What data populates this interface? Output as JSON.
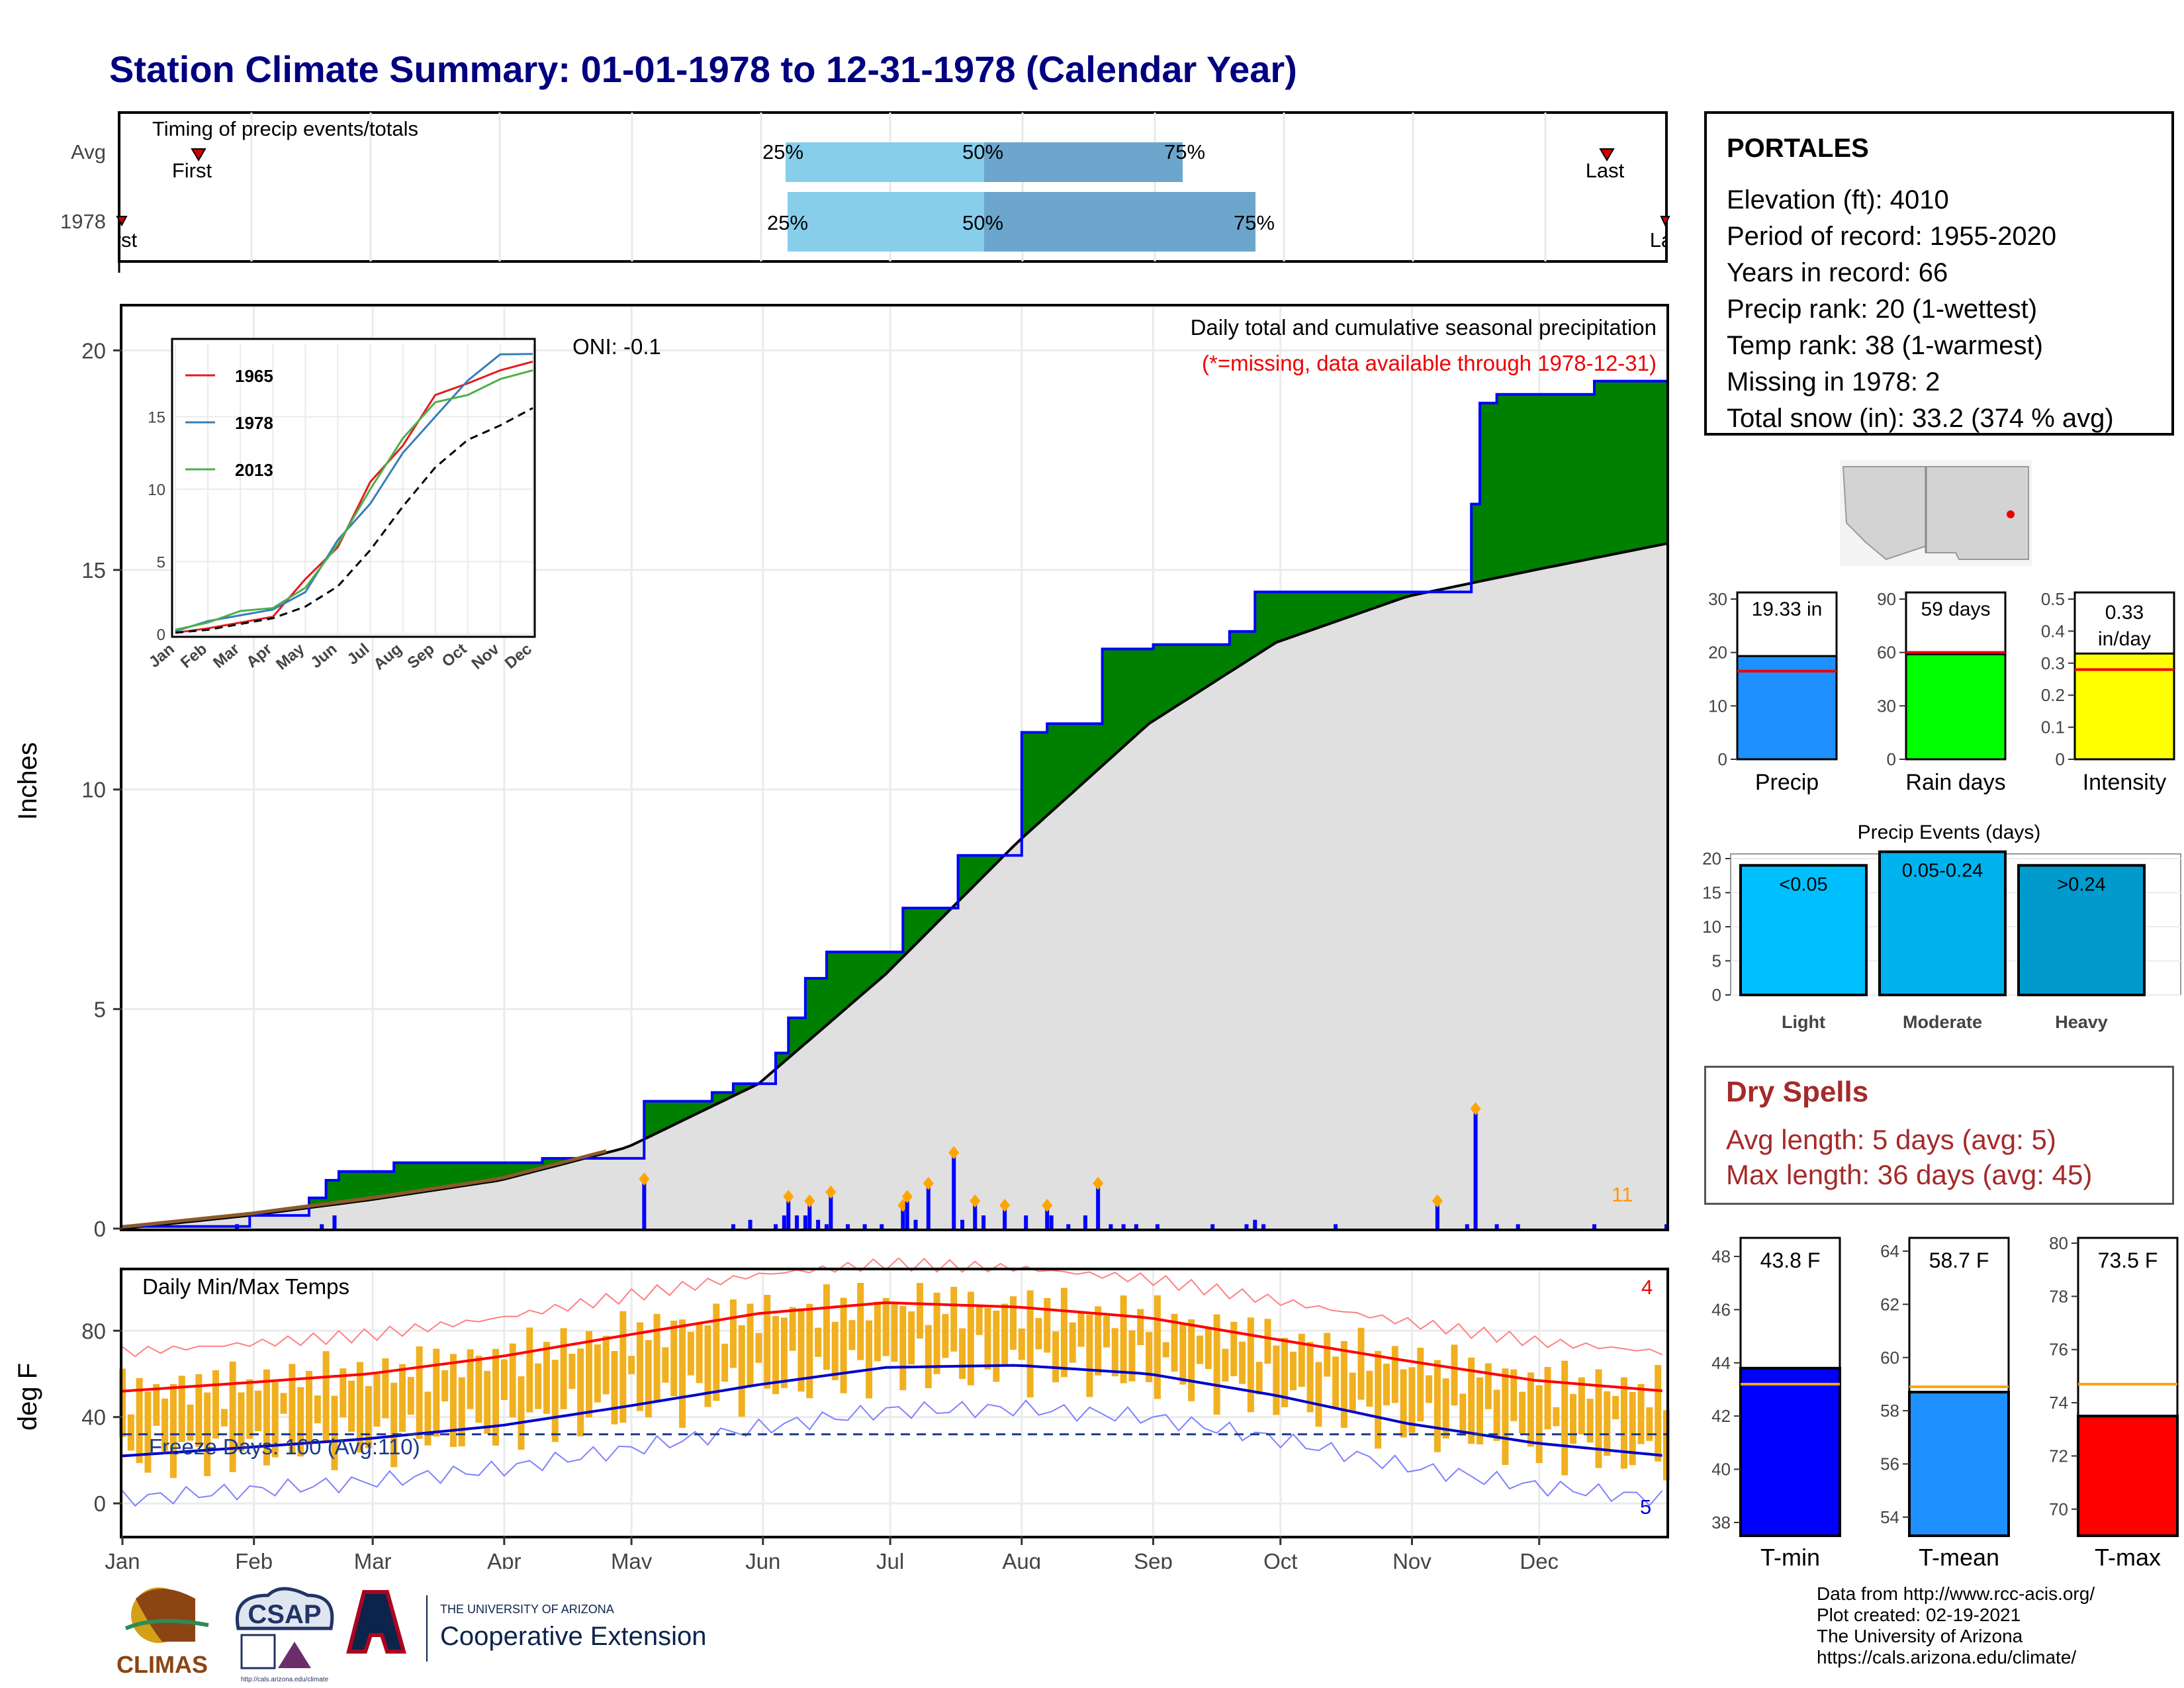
{
  "title": "Station Climate Summary: 01-01-1978 to 12-31-1978 (Calendar Year)",
  "colors": {
    "title": "#000080",
    "green": "#008000",
    "blue_outline": "#0000ff",
    "avg_fill": "#e0e0e0",
    "bar_light": "#00bfff",
    "bar_mod": "#00b2ee",
    "bar_heavy": "#009acd",
    "tmin": "#0000ff",
    "tmean": "#1e90ff",
    "tmax": "#ff0000",
    "precip_bar": "#1e90ff",
    "rain_bar": "#00ff00",
    "intensity_bar": "#ffff00",
    "dry": "#a52a2a",
    "temp_bars": "#f0b020"
  },
  "timing": {
    "label": "Timing of precip events/totals",
    "rows": [
      {
        "name": "Avg",
        "first": "First",
        "last": "Last",
        "p25": "25%",
        "p50": "50%",
        "p75": "75%"
      },
      {
        "name": "1978",
        "first": "First",
        "last": "Last",
        "p25": "25%",
        "p50": "50%",
        "p75": "75%"
      }
    ]
  },
  "station": {
    "name": "PORTALES",
    "lines": [
      "Elevation (ft): 4010",
      "Period of record: 1955-2020",
      "Years in record: 66",
      "Precip rank: 20 (1-wettest)",
      "Temp rank: 38 (1-warmest)",
      "Missing in 1978: 2",
      "Total snow (in): 33.2 (374 % avg)"
    ]
  },
  "precip_panel": {
    "ylabel": "Inches",
    "title": "Daily total and cumulative seasonal precipitation",
    "subtitle": "(*=missing, data available through 1978-12-31)",
    "oni": "ONI: -0.1",
    "count_label": "11"
  },
  "inset": {
    "legend": [
      "1965",
      "1978",
      "2013"
    ]
  },
  "summary_bars": {
    "precip": {
      "label": "Precip",
      "value_text": "19.33 in"
    },
    "rain_days": {
      "label": "Rain days",
      "value_text": "59 days"
    },
    "intensity": {
      "label": "Intensity",
      "value_text": "0.33 in/day"
    }
  },
  "events": {
    "title": "Precip Events (days)",
    "bars": [
      {
        "label": "Light",
        "inner": "<0.05",
        "value": 19
      },
      {
        "label": "Moderate",
        "inner": "0.05-0.24",
        "value": 21
      },
      {
        "label": "Heavy",
        "inner": ">0.24",
        "value": 19
      }
    ]
  },
  "dry_spells": {
    "title": "Dry Spells",
    "avg": "Avg length: 5 days (avg: 5)",
    "max": "Max length: 36 days (avg: 45)"
  },
  "temps_panel": {
    "ylabel": "deg F",
    "title": "Daily Min/Max Temps",
    "freeze": "Freeze Days: 100 (Avg:110)",
    "count_hi": "4",
    "count_lo": "5"
  },
  "temp_bars": {
    "tmin": {
      "label": "T-min",
      "value_text": "43.8 F"
    },
    "tmean": {
      "label": "T-mean",
      "value_text": "58.7 F"
    },
    "tmax": {
      "label": "T-max",
      "value_text": "73.5 F"
    }
  },
  "credits": [
    "Data from http://www.rcc-acis.org/",
    "Plot created: 02-19-2021",
    "The University of Arizona",
    "https://cals.arizona.edu/climate/"
  ],
  "logos": {
    "climas": "CLIMAS",
    "csap": "CSAP",
    "ua_top": "THE UNIVERSITY OF ARIZONA",
    "ua_bottom": "Cooperative Extension",
    "csap_url": "http://cals.arizona.edu/climate"
  },
  "chart_data": [
    {
      "type": "area",
      "name": "Daily total and cumulative seasonal precipitation",
      "x_label_months": [
        "Jan",
        "Feb",
        "Mar",
        "Apr",
        "May",
        "Jun",
        "Jul",
        "Aug",
        "Sep",
        "Oct",
        "Nov",
        "Dec"
      ],
      "ylim": [
        0,
        21
      ],
      "yticks": [
        0,
        5,
        10,
        15,
        20
      ],
      "cumulative_1978": [
        [
          1,
          0.05
        ],
        [
          31,
          0.3
        ],
        [
          45,
          0.7
        ],
        [
          49,
          1.1
        ],
        [
          52,
          1.3
        ],
        [
          65,
          1.5
        ],
        [
          100,
          1.6
        ],
        [
          124,
          2.9
        ],
        [
          140,
          3.1
        ],
        [
          145,
          3.3
        ],
        [
          155,
          4.0
        ],
        [
          158,
          4.8
        ],
        [
          162,
          5.7
        ],
        [
          167,
          6.3
        ],
        [
          175,
          6.3
        ],
        [
          185,
          7.3
        ],
        [
          192,
          7.3
        ],
        [
          198,
          8.5
        ],
        [
          213,
          11.3
        ],
        [
          219,
          11.5
        ],
        [
          232,
          13.2
        ],
        [
          244,
          13.3
        ],
        [
          262,
          13.6
        ],
        [
          268,
          14.5
        ],
        [
          311,
          14.5
        ],
        [
          319,
          16.5
        ],
        [
          321,
          18.8
        ],
        [
          325,
          19.0
        ],
        [
          348,
          19.3
        ],
        [
          365,
          19.33
        ]
      ],
      "cumulative_avg": [
        [
          1,
          0.0
        ],
        [
          31,
          0.3
        ],
        [
          59,
          0.65
        ],
        [
          90,
          1.1
        ],
        [
          120,
          1.85
        ],
        [
          151,
          3.3
        ],
        [
          181,
          5.8
        ],
        [
          212,
          8.8
        ],
        [
          243,
          11.5
        ],
        [
          273,
          13.35
        ],
        [
          304,
          14.4
        ],
        [
          334,
          15.0
        ],
        [
          365,
          15.6
        ]
      ],
      "daily_bars": [
        [
          28,
          0.1
        ],
        [
          48,
          0.1
        ],
        [
          51,
          0.3
        ],
        [
          124,
          1.1
        ],
        [
          145,
          0.1
        ],
        [
          149,
          0.2
        ],
        [
          155,
          0.1
        ],
        [
          157,
          0.3
        ],
        [
          158,
          0.7
        ],
        [
          160,
          0.3
        ],
        [
          162,
          0.3
        ],
        [
          163,
          0.6
        ],
        [
          165,
          0.2
        ],
        [
          167,
          0.1
        ],
        [
          168,
          0.8
        ],
        [
          172,
          0.1
        ],
        [
          176,
          0.1
        ],
        [
          180,
          0.1
        ],
        [
          185,
          0.5
        ],
        [
          186,
          0.7
        ],
        [
          188,
          0.2
        ],
        [
          191,
          1.0
        ],
        [
          197,
          1.7
        ],
        [
          199,
          0.2
        ],
        [
          202,
          0.6
        ],
        [
          204,
          0.3
        ],
        [
          209,
          0.5
        ],
        [
          214,
          0.3
        ],
        [
          219,
          0.5
        ],
        [
          220,
          0.3
        ],
        [
          224,
          0.1
        ],
        [
          228,
          0.3
        ],
        [
          231,
          1.0
        ],
        [
          234,
          0.1
        ],
        [
          237,
          0.1
        ],
        [
          240,
          0.1
        ],
        [
          245,
          0.1
        ],
        [
          258,
          0.1
        ],
        [
          266,
          0.1
        ],
        [
          268,
          0.2
        ],
        [
          270,
          0.1
        ],
        [
          287,
          0.1
        ],
        [
          311,
          0.6
        ],
        [
          318,
          0.1
        ],
        [
          320,
          2.7
        ],
        [
          325,
          0.1
        ],
        [
          330,
          0.1
        ],
        [
          348,
          0.1
        ],
        [
          365,
          0.1
        ]
      ]
    },
    {
      "type": "line",
      "name": "inset cumulative",
      "x_months": [
        "Jan",
        "Feb",
        "Mar",
        "Apr",
        "May",
        "Jun",
        "Jul",
        "Aug",
        "Sep",
        "Oct",
        "Nov",
        "Dec"
      ],
      "ylim": [
        0,
        20
      ],
      "yticks": [
        0,
        5,
        10,
        15
      ],
      "series": [
        {
          "name": "1965",
          "values": [
            [
              0,
              0.1
            ],
            [
              1,
              0.4
            ],
            [
              2,
              0.8
            ],
            [
              3,
              1.2
            ],
            [
              4,
              3.8
            ],
            [
              5,
              6.0
            ],
            [
              6,
              10.5
            ],
            [
              7,
              13.0
            ],
            [
              8,
              16.5
            ],
            [
              9,
              17.3
            ],
            [
              10,
              18.2
            ],
            [
              11,
              18.8
            ]
          ]
        },
        {
          "name": "1978",
          "values": [
            [
              0,
              0.2
            ],
            [
              1,
              0.9
            ],
            [
              2,
              1.3
            ],
            [
              3,
              1.7
            ],
            [
              4,
              2.9
            ],
            [
              5,
              6.5
            ],
            [
              6,
              9.0
            ],
            [
              7,
              12.5
            ],
            [
              8,
              15.0
            ],
            [
              9,
              17.5
            ],
            [
              10,
              19.3
            ],
            [
              11,
              19.33
            ]
          ]
        },
        {
          "name": "2013",
          "values": [
            [
              0,
              0.3
            ],
            [
              1,
              0.8
            ],
            [
              2,
              1.6
            ],
            [
              3,
              1.8
            ],
            [
              4,
              3.2
            ],
            [
              5,
              6.2
            ],
            [
              6,
              10.0
            ],
            [
              7,
              13.5
            ],
            [
              8,
              16.0
            ],
            [
              9,
              16.5
            ],
            [
              10,
              17.6
            ],
            [
              11,
              18.2
            ]
          ]
        }
      ],
      "avg": [
        [
          0,
          0.1
        ],
        [
          1,
          0.3
        ],
        [
          2,
          0.7
        ],
        [
          3,
          1.1
        ],
        [
          4,
          1.9
        ],
        [
          5,
          3.3
        ],
        [
          6,
          5.8
        ],
        [
          7,
          8.8
        ],
        [
          8,
          11.5
        ],
        [
          9,
          13.4
        ],
        [
          10,
          14.4
        ],
        [
          11,
          15.6
        ]
      ]
    },
    {
      "type": "bar",
      "name": "summary",
      "categories": [
        "Precip",
        "Rain days",
        "Intensity"
      ],
      "values": [
        19.33,
        59,
        0.33
      ],
      "averages": [
        16.5,
        60,
        0.28
      ],
      "ylims": [
        [
          0,
          30
        ],
        [
          0,
          90
        ],
        [
          0,
          0.5
        ]
      ]
    },
    {
      "type": "bar",
      "name": "Precip Events (days)",
      "categories": [
        "Light",
        "Moderate",
        "Heavy"
      ],
      "values": [
        19,
        21,
        19
      ],
      "ylim": [
        0,
        20
      ],
      "yticks": [
        0,
        5,
        10,
        15,
        20
      ]
    },
    {
      "type": "line",
      "name": "Daily Min/Max Temps",
      "ylim": [
        -15,
        108
      ],
      "yticks": [
        0,
        40,
        80
      ],
      "freeze_line": 32,
      "avg_max": [
        [
          1,
          52
        ],
        [
          31,
          56
        ],
        [
          59,
          60
        ],
        [
          90,
          68
        ],
        [
          120,
          78
        ],
        [
          151,
          88
        ],
        [
          181,
          93
        ],
        [
          212,
          91
        ],
        [
          243,
          86
        ],
        [
          273,
          76
        ],
        [
          304,
          66
        ],
        [
          334,
          57
        ],
        [
          365,
          52
        ]
      ],
      "avg_min": [
        [
          1,
          22
        ],
        [
          31,
          26
        ],
        [
          59,
          30
        ],
        [
          90,
          36
        ],
        [
          120,
          45
        ],
        [
          151,
          55
        ],
        [
          181,
          63
        ],
        [
          212,
          64
        ],
        [
          243,
          60
        ],
        [
          273,
          50
        ],
        [
          304,
          37
        ],
        [
          334,
          28
        ],
        [
          365,
          22
        ]
      ]
    },
    {
      "type": "bar",
      "name": "temperature summary",
      "categories": [
        "T-min",
        "T-mean",
        "T-max"
      ],
      "values": [
        43.8,
        58.7,
        73.5
      ],
      "averages": [
        43.2,
        58.9,
        74.7
      ],
      "ylims": [
        [
          37.5,
          48.5
        ],
        [
          53.3,
          64.3
        ],
        [
          69,
          80
        ]
      ]
    }
  ]
}
